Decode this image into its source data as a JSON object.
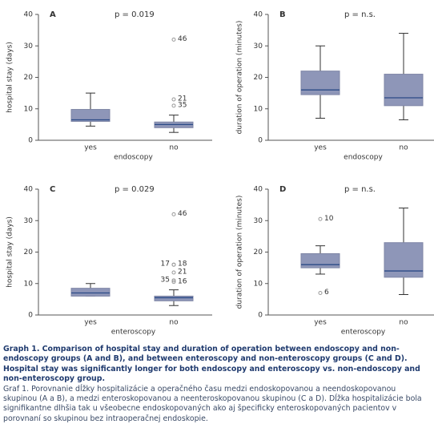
{
  "chart_data": [
    {
      "type": "box",
      "panel": "A",
      "annotation": "p = 0.019",
      "ylabel": "hospital stay (days)",
      "xlabel": "endoscopy",
      "categories": [
        "yes",
        "no"
      ],
      "ylim": [
        0,
        40
      ],
      "yticks": [
        0,
        10,
        20,
        30,
        40
      ],
      "color": "#8e96b8",
      "median_color": "#2b4a86",
      "boxes": [
        {
          "whislo": 4.5,
          "q1": 6,
          "med": 6.5,
          "q3": 9.8,
          "whishi": 15
        },
        {
          "whislo": 2.5,
          "q1": 4,
          "med": 5,
          "q3": 5.8,
          "whishi": 8,
          "outliers": [
            32,
            13,
            11
          ],
          "outlier_labels": [
            "46",
            "21",
            "35"
          ]
        }
      ]
    },
    {
      "type": "box",
      "panel": "B",
      "annotation": "p = n.s.",
      "ylabel": "duration of operation (minutes)",
      "xlabel": "endoscopy",
      "categories": [
        "yes",
        "no"
      ],
      "ylim": [
        0,
        40
      ],
      "yticks": [
        0,
        10,
        20,
        30,
        40
      ],
      "color": "#8e96b8",
      "median_color": "#2b4a86",
      "boxes": [
        {
          "whislo": 7,
          "q1": 14.5,
          "med": 16,
          "q3": 22,
          "whishi": 30
        },
        {
          "whislo": 6.5,
          "q1": 11,
          "med": 13.5,
          "q3": 21,
          "whishi": 34
        }
      ]
    },
    {
      "type": "box",
      "panel": "C",
      "annotation": "p = 0.029",
      "ylabel": "hospital stay (days)",
      "xlabel": "enteroscopy",
      "categories": [
        "yes",
        "no"
      ],
      "ylim": [
        0,
        40
      ],
      "yticks": [
        0,
        10,
        20,
        30,
        40
      ],
      "color": "#8e96b8",
      "median_color": "#2b4a86",
      "boxes": [
        {
          "whislo": 6,
          "q1": 6,
          "med": 7,
          "q3": 8.5,
          "whishi": 10
        },
        {
          "whislo": 3,
          "q1": 4.5,
          "med": 5.5,
          "q3": 6,
          "whishi": 8,
          "outliers": [
            32,
            16,
            16,
            13.5,
            10.5,
            11
          ],
          "outlier_labels": [
            "46",
            "18",
            "17",
            "21",
            "16",
            "35"
          ]
        }
      ]
    },
    {
      "type": "box",
      "panel": "D",
      "annotation": "p = n.s.",
      "ylabel": "duration of operation (minutes)",
      "xlabel": "enteroscopy",
      "categories": [
        "yes",
        "no"
      ],
      "ylim": [
        0,
        40
      ],
      "yticks": [
        0,
        10,
        20,
        30,
        40
      ],
      "color": "#8e96b8",
      "median_color": "#2b4a86",
      "boxes": [
        {
          "whislo": 13,
          "q1": 15,
          "med": 16,
          "q3": 19.5,
          "whishi": 22,
          "outliers": [
            30.5,
            7
          ],
          "outlier_labels": [
            "10",
            "6"
          ]
        },
        {
          "whislo": 6.5,
          "q1": 12,
          "med": 14,
          "q3": 23,
          "whishi": 34
        }
      ]
    }
  ],
  "caption": {
    "title": "Graph 1. Comparison of hospital stay and duration of operation between endoscopy and non-endoscopy groups (A and B), and between enteroscopy and non-enteroscopy groups (C and D). Hospital stay was significantly longer for both endoscopy and enteroscopy vs. non-endoscopy and non-enteroscopy group.",
    "text": "Graf 1. Porovnanie dĺžky hospitalizácie a operačného času medzi endoskopovanou a neendoskopovanou skupinou (A a B), a medzi enteroskopovanou a neenteroskopovanou skupinou (C a D). Dĺžka hospitalizácie bola signifikantne dlhšia tak u všeobecne endoskopovaných ako aj špecificky enteroskopovaných pacientov v porovnaní so skupinou bez intraoperačnej endoskopie."
  }
}
